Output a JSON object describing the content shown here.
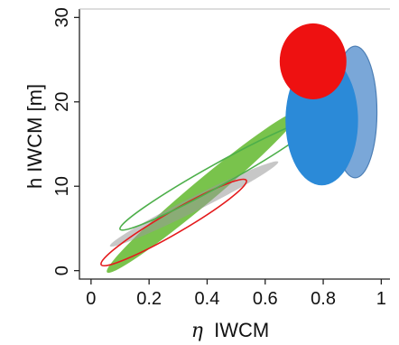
{
  "chart_data": {
    "type": "scatter",
    "title": "",
    "xlabel": "η IWCM",
    "xlabel_symbol": "η",
    "xlabel_text": "IWCM",
    "ylabel": "h IWCM [m]",
    "xlim": [
      -0.04,
      1.03
    ],
    "ylim": [
      -1,
      31
    ],
    "xticks": [
      {
        "value": 0,
        "label": "0"
      },
      {
        "value": 0.2,
        "label": "0.2"
      },
      {
        "value": 0.4,
        "label": "0.4"
      },
      {
        "value": 0.6,
        "label": "0.6"
      },
      {
        "value": 0.8,
        "label": "0.8"
      },
      {
        "value": 1,
        "label": "1"
      }
    ],
    "yticks": [
      {
        "value": 0,
        "label": "0"
      },
      {
        "value": 10,
        "label": "10"
      },
      {
        "value": 20,
        "label": "20"
      },
      {
        "value": 30,
        "label": "30"
      }
    ],
    "grid": false,
    "legend": "none",
    "regions": [
      {
        "kind": "filled",
        "cx": 0.385,
        "cy": 9.3,
        "x_extent": 0.33,
        "y_extent": 9.5,
        "color": "#66bb33",
        "opacity": 0.88
      },
      {
        "kind": "filled",
        "cx": 0.355,
        "cy": 7.9,
        "x_extent": 0.29,
        "y_extent": 5.0,
        "color": "#999999",
        "opacity": 0.55
      },
      {
        "kind": "outline",
        "cx": 0.285,
        "cy": 5.7,
        "x_extent": 0.25,
        "y_extent": 5.0,
        "color": "#e41a1c"
      },
      {
        "kind": "outline",
        "cx": 0.44,
        "cy": 11.4,
        "x_extent": 0.34,
        "y_extent": 6.5,
        "color": "#4daf4a"
      },
      {
        "kind": "filled",
        "cx": 0.91,
        "cy": 18.8,
        "x_extent": 0.075,
        "y_extent": 7.8,
        "color": "#7aa7d8",
        "opacity": 1
      },
      {
        "kind": "filled",
        "cx": 0.795,
        "cy": 17.8,
        "x_extent": 0.125,
        "y_extent": 7.7,
        "color": "#2b8ad8",
        "opacity": 1
      },
      {
        "kind": "filled",
        "cx": 0.765,
        "cy": 24.8,
        "x_extent": 0.115,
        "y_extent": 4.5,
        "color": "#ee1111",
        "opacity": 1
      }
    ]
  }
}
